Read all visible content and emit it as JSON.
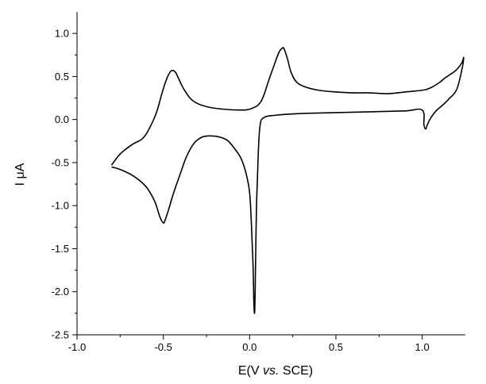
{
  "chart_data": {
    "type": "line",
    "title": "",
    "xlabel_parts": [
      "E(V ",
      "vs.",
      " SCE)"
    ],
    "ylabel": "I μA",
    "xlim": [
      -1.0,
      1.25
    ],
    "ylim": [
      -2.5,
      1.25
    ],
    "x_ticks": [
      -1.0,
      -0.5,
      0.0,
      0.5,
      1.0
    ],
    "x_tick_labels": [
      "-1.0",
      "-0.5",
      "0.0",
      "0.5",
      "1.0"
    ],
    "y_ticks": [
      -2.5,
      -2.0,
      -1.5,
      -1.0,
      -0.5,
      0.0,
      0.5,
      1.0
    ],
    "y_tick_labels": [
      "-2.5",
      "-2.0",
      "-1.5",
      "-1.0",
      "-0.5",
      "0.0",
      "0.5",
      "1.0"
    ],
    "grid": false,
    "line_color": "#000000",
    "series": [
      {
        "x": [
          -0.8,
          -0.75,
          -0.68,
          -0.62,
          -0.58,
          -0.54,
          -0.51,
          -0.49,
          -0.47,
          -0.45,
          -0.43,
          -0.41,
          -0.38,
          -0.33,
          -0.25,
          -0.15,
          -0.05,
          0.0,
          0.05,
          0.08,
          0.11,
          0.14,
          0.17,
          0.19,
          0.2,
          0.22,
          0.24,
          0.27,
          0.32,
          0.4,
          0.5,
          0.6,
          0.7,
          0.8,
          0.9,
          1.0,
          1.05,
          1.1,
          1.13,
          1.16,
          1.2,
          1.23,
          1.24,
          1.23,
          1.2,
          1.16,
          1.12,
          1.08,
          1.05,
          1.03,
          1.02,
          1.01,
          1.0,
          0.9,
          0.7,
          0.5,
          0.3,
          0.15,
          0.08,
          0.06,
          0.05,
          0.04,
          0.035,
          0.03,
          0.025,
          0.02,
          0.01,
          0.0,
          -0.02,
          -0.05,
          -0.09,
          -0.13,
          -0.18,
          -0.23,
          -0.27,
          -0.31,
          -0.34,
          -0.37,
          -0.4,
          -0.44,
          -0.47,
          -0.49,
          -0.5,
          -0.52,
          -0.55,
          -0.6,
          -0.67,
          -0.75,
          -0.8
        ],
        "y": [
          -0.53,
          -0.4,
          -0.29,
          -0.22,
          -0.1,
          0.08,
          0.29,
          0.42,
          0.52,
          0.57,
          0.55,
          0.47,
          0.35,
          0.22,
          0.15,
          0.12,
          0.11,
          0.12,
          0.17,
          0.27,
          0.45,
          0.62,
          0.78,
          0.83,
          0.82,
          0.7,
          0.55,
          0.44,
          0.38,
          0.34,
          0.32,
          0.31,
          0.31,
          0.3,
          0.32,
          0.34,
          0.37,
          0.43,
          0.48,
          0.52,
          0.58,
          0.66,
          0.72,
          0.58,
          0.35,
          0.25,
          0.17,
          0.1,
          0.02,
          -0.06,
          -0.11,
          -0.06,
          0.11,
          0.1,
          0.09,
          0.08,
          0.07,
          0.05,
          0.02,
          -0.08,
          -0.4,
          -1.0,
          -1.6,
          -2.2,
          -2.15,
          -1.7,
          -1.2,
          -0.85,
          -0.63,
          -0.45,
          -0.33,
          -0.24,
          -0.2,
          -0.19,
          -0.2,
          -0.25,
          -0.33,
          -0.45,
          -0.62,
          -0.85,
          -1.05,
          -1.17,
          -1.2,
          -1.13,
          -0.95,
          -0.78,
          -0.66,
          -0.58,
          -0.55
        ]
      }
    ]
  }
}
